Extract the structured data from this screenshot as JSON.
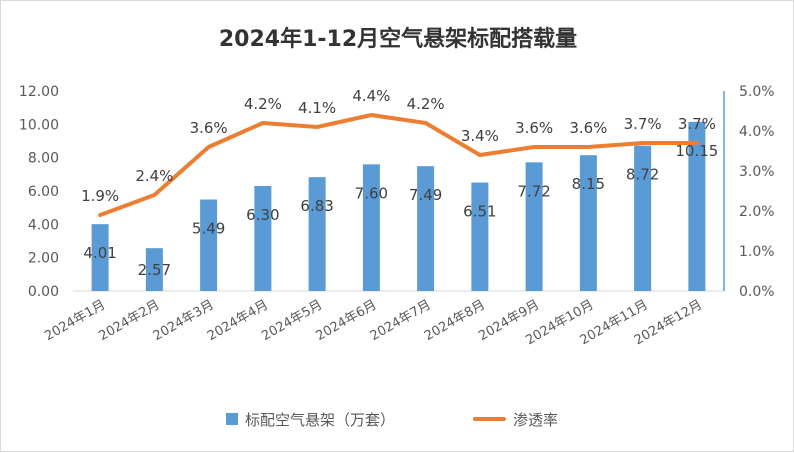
{
  "chart_data": {
    "type": "bar",
    "title": "2024年1-12月空气悬架标配搭载量",
    "categories": [
      "2024年1月",
      "2024年2月",
      "2024年3月",
      "2024年4月",
      "2024年5月",
      "2024年6月",
      "2024年7月",
      "2024年8月",
      "2024年9月",
      "2024年10月",
      "2024年11月",
      "2024年12月"
    ],
    "series": [
      {
        "name": "标配空气悬架（万套）",
        "type": "bar",
        "axis": "left",
        "color": "#5b9bd5",
        "values": [
          4.01,
          2.57,
          5.49,
          6.3,
          6.83,
          7.6,
          7.49,
          6.51,
          7.72,
          8.15,
          8.72,
          10.15
        ],
        "labels": [
          "4.01",
          "2.57",
          "5.49",
          "6.30",
          "6.83",
          "7.60",
          "7.49",
          "6.51",
          "7.72",
          "8.15",
          "8.72",
          "10.15"
        ]
      },
      {
        "name": "渗透率",
        "type": "line",
        "axis": "right",
        "color": "#ed7d31",
        "values": [
          1.9,
          2.4,
          3.6,
          4.2,
          4.1,
          4.4,
          4.2,
          3.4,
          3.6,
          3.6,
          3.7,
          3.7
        ],
        "labels": [
          "1.9%",
          "2.4%",
          "3.6%",
          "4.2%",
          "4.1%",
          "4.4%",
          "4.2%",
          "3.4%",
          "3.6%",
          "3.6%",
          "3.7%",
          "3.7%"
        ]
      }
    ],
    "y_left": {
      "min": 0,
      "max": 12,
      "step": 2,
      "ticks": [
        "0.00",
        "2.00",
        "4.00",
        "6.00",
        "8.00",
        "10.00",
        "12.00"
      ]
    },
    "y_right": {
      "min": 0,
      "max": 5,
      "step": 1,
      "ticks": [
        "0.0%",
        "1.0%",
        "2.0%",
        "3.0%",
        "4.0%",
        "5.0%"
      ]
    },
    "grid": false,
    "legend_position": "bottom"
  }
}
